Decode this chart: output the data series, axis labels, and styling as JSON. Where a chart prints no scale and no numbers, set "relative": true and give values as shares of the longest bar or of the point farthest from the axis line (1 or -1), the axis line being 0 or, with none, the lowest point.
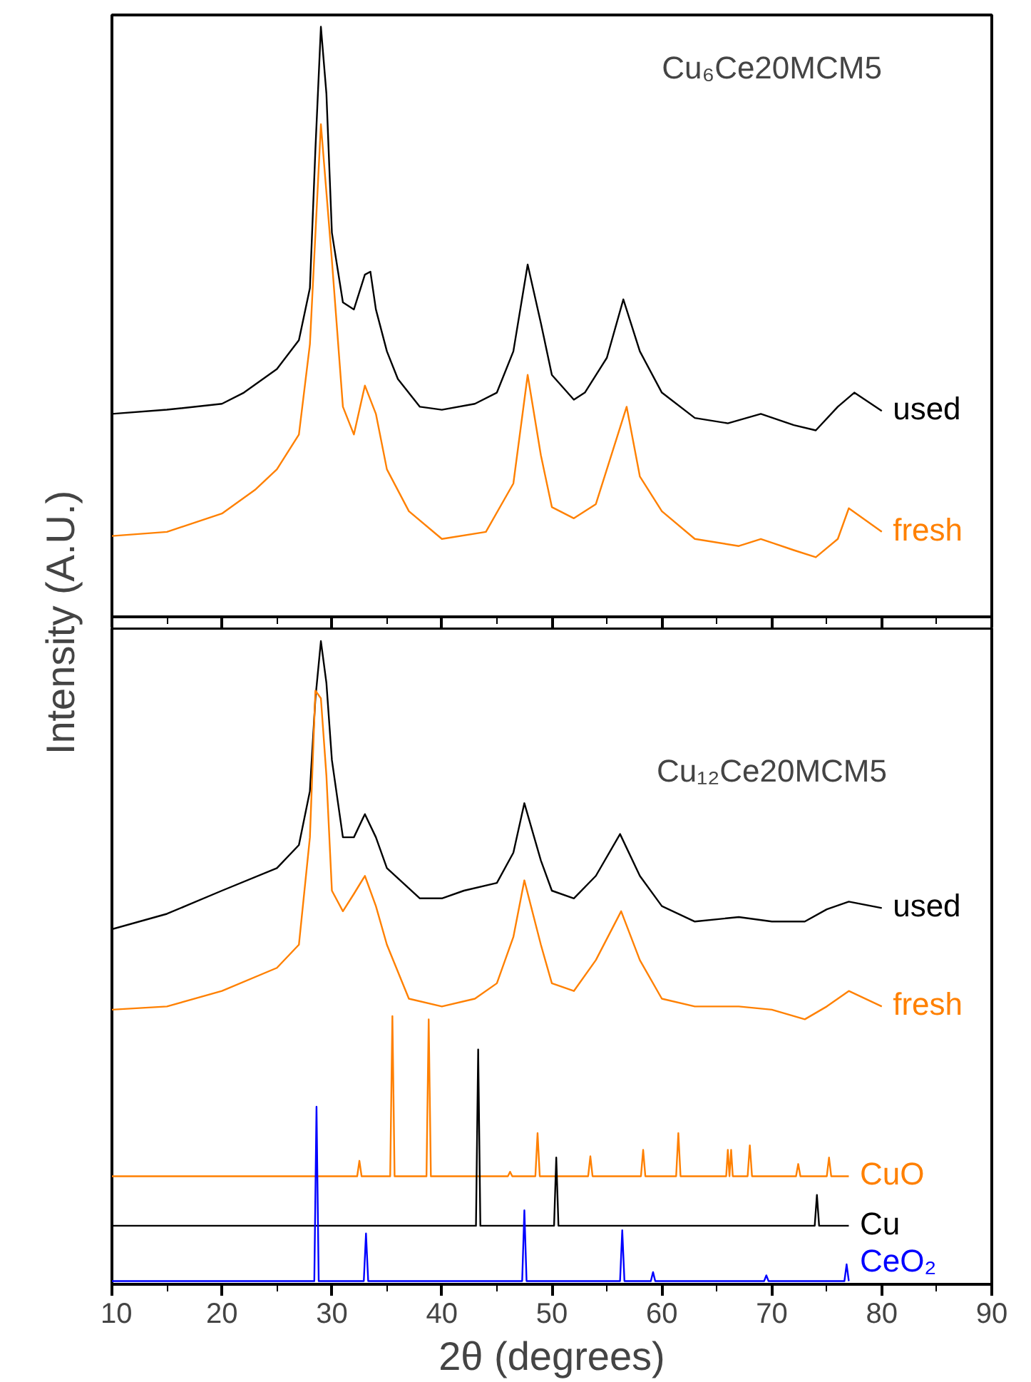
{
  "chart_data": [
    {
      "type": "line",
      "relative": true,
      "annotations": [
        "Cu₆Ce20MCM5"
      ],
      "ylabel": "Intensity (A.U.)",
      "xlim": [
        10,
        90
      ],
      "xticks": [
        10,
        20,
        30,
        40,
        50,
        60,
        70,
        80,
        90
      ],
      "tick_labels": false,
      "series": [
        {
          "name": "used",
          "color": "#000000",
          "x": [
            10,
            15,
            20,
            22,
            25,
            27,
            28,
            28.5,
            29,
            29.5,
            30,
            31,
            32,
            33,
            33.5,
            34,
            35,
            36,
            38,
            40,
            43,
            45,
            46.5,
            47.8,
            49,
            50,
            52,
            53,
            55,
            56.5,
            58,
            60,
            63,
            66,
            69,
            72,
            74,
            76,
            77.5,
            80
          ],
          "values": [
            0.344,
            0.351,
            0.361,
            0.38,
            0.42,
            0.469,
            0.557,
            0.792,
            1.0,
            0.887,
            0.651,
            0.533,
            0.521,
            0.58,
            0.585,
            0.521,
            0.45,
            0.403,
            0.356,
            0.351,
            0.361,
            0.38,
            0.45,
            0.597,
            0.498,
            0.41,
            0.368,
            0.38,
            0.439,
            0.538,
            0.45,
            0.38,
            0.337,
            0.328,
            0.344,
            0.325,
            0.316,
            0.356,
            0.38,
            0.349
          ]
        },
        {
          "name": "fresh",
          "color": "#ff8000",
          "x": [
            10,
            15,
            20,
            23,
            25,
            27,
            28,
            29,
            30,
            31,
            32,
            33,
            34,
            35,
            37,
            40,
            44,
            46.5,
            47.8,
            49,
            50,
            52,
            54,
            56.8,
            58,
            60,
            63,
            67,
            69,
            72,
            74,
            76,
            77,
            80
          ],
          "values": [
            0.137,
            0.144,
            0.175,
            0.215,
            0.25,
            0.309,
            0.462,
            0.835,
            0.604,
            0.356,
            0.309,
            0.392,
            0.344,
            0.25,
            0.179,
            0.132,
            0.144,
            0.226,
            0.41,
            0.274,
            0.186,
            0.167,
            0.191,
            0.356,
            0.238,
            0.179,
            0.132,
            0.12,
            0.132,
            0.113,
            0.101,
            0.132,
            0.184,
            0.144
          ]
        }
      ]
    },
    {
      "type": "line",
      "relative": true,
      "annotations": [
        "Cu₁₂Ce20MCM5"
      ],
      "xlabel": "2θ (degrees)",
      "xlim": [
        10,
        90
      ],
      "xticks": [
        10,
        20,
        30,
        40,
        50,
        60,
        70,
        80,
        90
      ],
      "tick_labels": "x",
      "series": [
        {
          "name": "used",
          "color": "#000000",
          "x": [
            10,
            15,
            20,
            25,
            27,
            28,
            28.5,
            29,
            29.5,
            30,
            31,
            32,
            33,
            34,
            35,
            38,
            40,
            42,
            45,
            46.5,
            47.5,
            49,
            50,
            52,
            54,
            56.2,
            58,
            60,
            63,
            67,
            70,
            73,
            75,
            77,
            80
          ],
          "values": [
            0.552,
            0.576,
            0.612,
            0.647,
            0.683,
            0.767,
            0.911,
            1.0,
            0.935,
            0.815,
            0.695,
            0.695,
            0.731,
            0.695,
            0.647,
            0.6,
            0.6,
            0.612,
            0.624,
            0.671,
            0.748,
            0.659,
            0.612,
            0.6,
            0.635,
            0.7,
            0.635,
            0.588,
            0.564,
            0.571,
            0.564,
            0.564,
            0.583,
            0.595,
            0.585
          ]
        },
        {
          "name": "fresh",
          "color": "#ff8000",
          "x": [
            10,
            15,
            20,
            25,
            27,
            28,
            28.5,
            29,
            29.5,
            30,
            31,
            32,
            33,
            34,
            35,
            37,
            40,
            43,
            45,
            46.5,
            47.5,
            49,
            50,
            52,
            54,
            56.3,
            58,
            60,
            63,
            67,
            70,
            73,
            75,
            77,
            80
          ],
          "values": [
            0.427,
            0.432,
            0.456,
            0.492,
            0.528,
            0.695,
            0.923,
            0.911,
            0.791,
            0.612,
            0.58,
            0.607,
            0.635,
            0.588,
            0.528,
            0.444,
            0.432,
            0.444,
            0.468,
            0.54,
            0.628,
            0.528,
            0.468,
            0.456,
            0.504,
            0.58,
            0.504,
            0.444,
            0.432,
            0.432,
            0.427,
            0.412,
            0.432,
            0.456,
            0.432
          ]
        },
        {
          "name": "CuO",
          "color": "#ff8000",
          "x": [
            10,
            32.3,
            32.5,
            32.7,
            35.3,
            35.5,
            35.7,
            38.6,
            38.8,
            39.0,
            46.0,
            46.2,
            46.4,
            48.5,
            48.7,
            48.9,
            53.3,
            53.5,
            53.7,
            58.1,
            58.3,
            58.5,
            61.3,
            61.5,
            61.7,
            65.85,
            66.0,
            66.15,
            66.3,
            66.45,
            67.8,
            68.0,
            68.2,
            72.2,
            72.4,
            72.6,
            75.0,
            75.2,
            75.4,
            77
          ],
          "values": [
            0.168,
            0.168,
            0.192,
            0.168,
            0.168,
            0.417,
            0.168,
            0.168,
            0.412,
            0.168,
            0.168,
            0.175,
            0.168,
            0.168,
            0.235,
            0.168,
            0.168,
            0.199,
            0.168,
            0.168,
            0.209,
            0.168,
            0.168,
            0.235,
            0.168,
            0.168,
            0.209,
            0.168,
            0.209,
            0.168,
            0.168,
            0.216,
            0.168,
            0.168,
            0.187,
            0.168,
            0.168,
            0.197,
            0.168,
            0.168
          ]
        },
        {
          "name": "Cu",
          "color": "#000000",
          "x": [
            10,
            43.1,
            43.3,
            43.5,
            50.2,
            50.4,
            50.6,
            73.9,
            74.1,
            74.3,
            77
          ],
          "values": [
            0.091,
            0.091,
            0.365,
            0.091,
            0.091,
            0.197,
            0.091,
            0.091,
            0.139,
            0.091,
            0.091
          ]
        },
        {
          "name": "CeO₂",
          "color": "#0000ff",
          "x": [
            10,
            28.4,
            28.6,
            28.8,
            32.9,
            33.1,
            33.3,
            47.3,
            47.5,
            47.7,
            56.2,
            56.4,
            56.6,
            59.0,
            59.2,
            59.4,
            69.3,
            69.5,
            69.7,
            76.6,
            76.8,
            77
          ],
          "values": [
            0.005,
            0.005,
            0.276,
            0.005,
            0.005,
            0.079,
            0.005,
            0.005,
            0.115,
            0.005,
            0.005,
            0.084,
            0.005,
            0.005,
            0.019,
            0.005,
            0.005,
            0.014,
            0.005,
            0.005,
            0.031,
            0.005
          ]
        }
      ]
    }
  ]
}
